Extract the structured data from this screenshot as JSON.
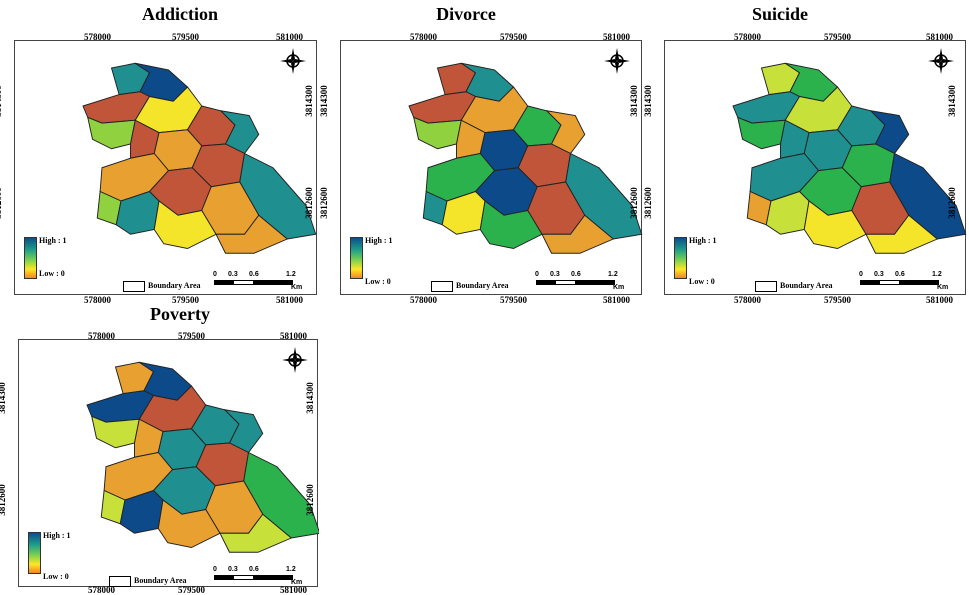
{
  "maps": [
    {
      "title": "Addiction",
      "x_ticks": [
        "578000",
        "579500",
        "581000"
      ],
      "y_ticks": [
        "3814300",
        "3812600"
      ],
      "legend": {
        "high": "High : 1",
        "low": "Low : 0"
      },
      "boundary_label": "Boundary Area",
      "scale": {
        "labels": [
          "0",
          "0.3",
          "0.6",
          "1.2"
        ],
        "unit": "Km"
      }
    },
    {
      "title": "Divorce",
      "x_ticks": [
        "578000",
        "579500",
        "581000"
      ],
      "y_ticks": [
        "3814300",
        "3812600"
      ],
      "legend": {
        "high": "High : 1",
        "low": "Low : 0"
      },
      "boundary_label": "Boundary Area",
      "scale": {
        "labels": [
          "0",
          "0.3",
          "0.6",
          "1.2"
        ],
        "unit": "Km"
      }
    },
    {
      "title": "Suicide",
      "x_ticks": [
        "578000",
        "579500",
        "581000"
      ],
      "y_ticks": [
        "3814300",
        "3812600"
      ],
      "legend": {
        "high": "High : 1",
        "low": "Low : 0"
      },
      "boundary_label": "Boundary Area",
      "scale": {
        "labels": [
          "0",
          "0.3",
          "0.6",
          "1.2"
        ],
        "unit": "Km"
      }
    },
    {
      "title": "Poverty",
      "x_ticks": [
        "578000",
        "579500",
        "581000"
      ],
      "y_ticks": [
        "3814300",
        "3812600"
      ],
      "legend": {
        "high": "High : 1",
        "low": "Low : 0"
      },
      "boundary_label": "Boundary Area",
      "scale": {
        "labels": [
          "0",
          "0.3",
          "0.6",
          "1.2"
        ],
        "unit": "Km"
      }
    }
  ],
  "colors": {
    "dark_blue": "#0d4a8a",
    "teal": "#1f8f8f",
    "green": "#2bb24c",
    "light_green": "#8fd13f",
    "yellow_green": "#c8e03a",
    "yellow": "#f5e52a",
    "orange": "#e8a030",
    "red_brown": "#c0553a"
  }
}
